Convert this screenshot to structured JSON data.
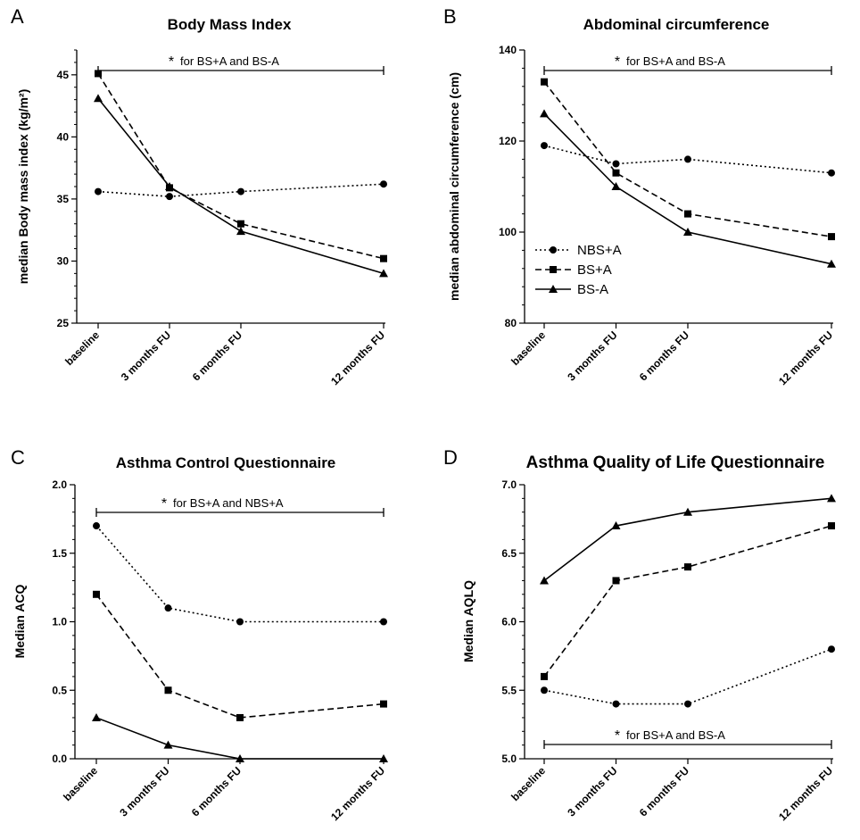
{
  "chart_data": [
    {
      "panel": "A",
      "type": "line",
      "title": "Body Mass  Index",
      "ylabel": "median Body mass index (kg/m²)",
      "ylim": [
        25,
        47
      ],
      "yticks": [
        "25",
        "30",
        "35",
        "40",
        "45"
      ],
      "categories": [
        "baseline",
        "3 months FU",
        "6 months FU",
        "12 months FU"
      ],
      "x": [
        0,
        3,
        6,
        12
      ],
      "series": [
        {
          "name": "NBS+A",
          "values": [
            35.6,
            35.2,
            35.6,
            36.2
          ]
        },
        {
          "name": "BS+A",
          "values": [
            45.1,
            35.9,
            33.0,
            30.2
          ]
        },
        {
          "name": "BS-A",
          "values": [
            43.1,
            36.0,
            32.4,
            29.0
          ]
        }
      ],
      "annotation": {
        "star": "*",
        "text": "for BS+A and BS-A",
        "value": 46.3
      }
    },
    {
      "panel": "B",
      "type": "line",
      "title": "Abdominal circumference",
      "ylabel": "median abdominal circumference (cm)",
      "ylim": [
        80,
        140
      ],
      "yticks": [
        "80",
        "100",
        "120",
        "140"
      ],
      "categories": [
        "baseline",
        "3 months FU",
        "6 months FU",
        "12 months FU"
      ],
      "x": [
        0,
        3,
        6,
        12
      ],
      "series": [
        {
          "name": "NBS+A",
          "values": [
            119,
            115,
            116,
            113
          ]
        },
        {
          "name": "BS+A",
          "values": [
            133,
            113,
            104,
            99
          ]
        },
        {
          "name": "BS-A",
          "values": [
            126,
            110,
            100,
            93
          ]
        }
      ],
      "annotation": {
        "star": "*",
        "text": "for BS+A and BS-A",
        "value": 136
      },
      "legend": {
        "placement": "center-left",
        "entries": [
          "NBS+A",
          "BS+A",
          "BS-A"
        ]
      }
    },
    {
      "panel": "C",
      "type": "line",
      "title": "Asthma Control Questionnaire",
      "ylabel": "Median ACQ",
      "ylim": [
        0,
        2.0
      ],
      "yticks": [
        "0.0",
        "0.5",
        "1.0",
        "1.5",
        "2.0"
      ],
      "categories": [
        "baseline",
        "3 months FU",
        "6 months FU",
        "12 months FU"
      ],
      "x": [
        0,
        3,
        6,
        12
      ],
      "series": [
        {
          "name": "NBS+A",
          "values": [
            1.7,
            1.1,
            1.0,
            1.0
          ]
        },
        {
          "name": "BS+A",
          "values": [
            1.2,
            0.5,
            0.3,
            0.4
          ]
        },
        {
          "name": "BS-A",
          "values": [
            0.3,
            0.1,
            0.0,
            0.0
          ]
        }
      ],
      "annotation": {
        "star": "*",
        "text": "for BS+A and NBS+A",
        "value": 1.8
      }
    },
    {
      "panel": "D",
      "type": "line",
      "title": "Asthma Quality of  Life  Questionnaire",
      "ylabel": "Median AQLQ",
      "ylim": [
        5.0,
        7.0
      ],
      "yticks": [
        "5.0",
        "5.5",
        "6.0",
        "6.5",
        "7.0"
      ],
      "categories": [
        "baseline",
        "3 months FU",
        "6 months FU",
        "12 months FU"
      ],
      "x": [
        0,
        3,
        6,
        12
      ],
      "series": [
        {
          "name": "NBS+A",
          "values": [
            5.5,
            5.4,
            5.4,
            5.8
          ]
        },
        {
          "name": "BS+A",
          "values": [
            5.6,
            6.3,
            6.4,
            6.7
          ]
        },
        {
          "name": "BS-A",
          "values": [
            6.3,
            6.7,
            6.8,
            6.9
          ]
        }
      ],
      "annotation": {
        "star": "*",
        "text": "for BS+A and BS-A",
        "value": 5.1
      }
    }
  ],
  "styles": {
    "NBS+A": {
      "dash": "2,3",
      "marker": "circle"
    },
    "BS+A": {
      "dash": "7,4",
      "marker": "square"
    },
    "BS-A": {
      "dash": "",
      "marker": "triangle"
    }
  },
  "colors": {
    "ink": "#000000",
    "background": "#ffffff"
  }
}
